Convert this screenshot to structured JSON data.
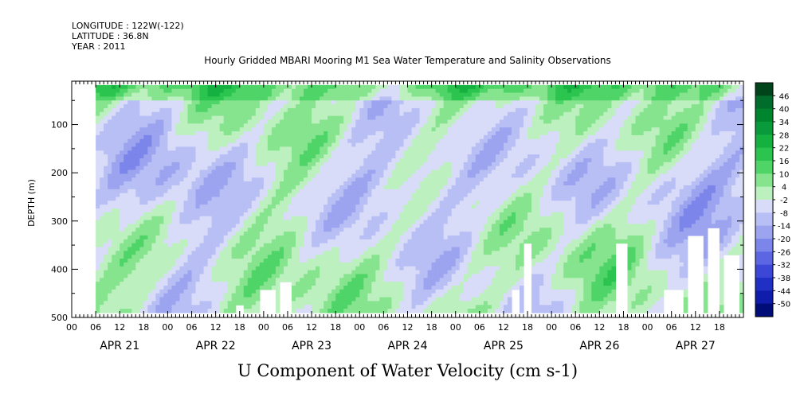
{
  "header": {
    "longitude": "LONGITUDE : 122W(-122)",
    "latitude": "LATITUDE : 36.8N",
    "year": "YEAR : 2011"
  },
  "chart_data": {
    "type": "heatmap",
    "title": "Hourly Gridded MBARI Mooring M1 Sea Water Temperature and Salinity Observations",
    "bottom_title": "U Component of Water Velocity (cm s-1)",
    "xlabel": "",
    "ylabel": "DEPTH (m)",
    "x_hour_ticks": [
      "00",
      "06",
      "12",
      "18",
      "00",
      "06",
      "12",
      "18",
      "00",
      "06",
      "12",
      "18",
      "00",
      "06",
      "12",
      "18",
      "00",
      "06",
      "12",
      "18",
      "00",
      "06",
      "12",
      "18",
      "00",
      "06",
      "12",
      "18"
    ],
    "x_day_labels": [
      "APR 21",
      "APR 22",
      "APR 23",
      "APR 24",
      "APR 25",
      "APR 26",
      "APR 27"
    ],
    "y_ticks": [
      100,
      200,
      300,
      400,
      500
    ],
    "ylim": [
      10,
      500
    ],
    "y_inverted": true,
    "x_range_hours": [
      0,
      168
    ],
    "data_start_hour": 6,
    "data_end_hour": 168,
    "depth_max_data": 490,
    "colorbar": {
      "levels": [
        46,
        40,
        34,
        28,
        22,
        16,
        10,
        4,
        -2,
        -8,
        -14,
        -20,
        -26,
        -32,
        -38,
        -44,
        -50
      ],
      "labels": [
        "46",
        "40",
        "34",
        "28",
        "22",
        "16",
        "10",
        "4",
        "-2",
        "-8",
        "-14",
        "-20",
        "-26",
        "-32",
        "-38",
        "-44",
        "-50"
      ],
      "colors_high_to_low": [
        "#00441b",
        "#006d2c",
        "#00852f",
        "#089a3b",
        "#14b040",
        "#2bc44e",
        "#4fd468",
        "#86e38e",
        "#bdf0bf",
        "#d8dcf8",
        "#b8bff4",
        "#9ca3ef",
        "#7c85ea",
        "#5c66e3",
        "#3c47d8",
        "#2030c4",
        "#101cab",
        "#000c78"
      ]
    },
    "description_blanks": [
      {
        "t0": 45,
        "t1": 47,
        "d0": 470
      },
      {
        "t0": 51,
        "t1": 56,
        "d0": 440
      },
      {
        "t0": 57,
        "t1": 60,
        "d0": 420
      },
      {
        "t0": 120,
        "t1": 123,
        "d0": 440
      },
      {
        "t0": 124,
        "t1": 126,
        "d0": 340
      },
      {
        "t0": 149,
        "t1": 152,
        "d0": 340
      },
      {
        "t0": 162,
        "t1": 168,
        "d0": 440
      },
      {
        "t0": 169,
        "t1": 173,
        "d0": 330
      },
      {
        "t0": 174,
        "t1": 178,
        "d0": 310
      },
      {
        "t0": 179,
        "t1": 183,
        "d0": 370
      }
    ]
  }
}
